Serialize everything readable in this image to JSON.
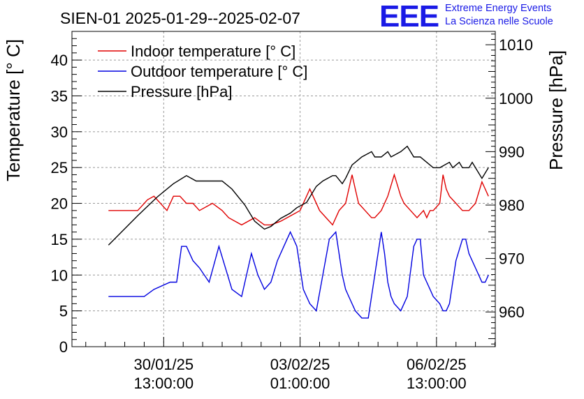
{
  "logo": {
    "mark": "EEE",
    "line1": "Extreme Energy Events",
    "line2": "La Scienza nelle Scuole",
    "color": "#1a1ae6"
  },
  "chart_data": {
    "type": "line",
    "title": "SIEN-01 2025-01-29--2025-02-07",
    "x_label": "",
    "x_ticks": [
      {
        "hours": 24.0,
        "line1": "30/01/25",
        "line2": "13:00:00"
      },
      {
        "hours": 108.0,
        "line1": "03/02/25",
        "line2": "01:00:00"
      },
      {
        "hours": 192.0,
        "line1": "06/02/25",
        "line2": "13:00:00"
      }
    ],
    "x_range_hours": [
      -32.5,
      228.2
    ],
    "x_unit": "hours since 2025-01-29 13:00:00",
    "y_left": {
      "label": "Temperature [° C]",
      "range": [
        0,
        44
      ],
      "ticks": [
        0,
        5,
        10,
        15,
        20,
        25,
        30,
        35,
        40
      ]
    },
    "y_right": {
      "label": "Pressure [hPa]",
      "range": [
        953.5,
        1012.5
      ],
      "ticks": [
        960,
        970,
        980,
        990,
        1000,
        1010
      ]
    },
    "grid": true,
    "legend_position": "top-left",
    "series": [
      {
        "name": "Indoor temperature [° C]",
        "axis": "left",
        "color": "#e00000",
        "x": [
          -10,
          8,
          10,
          14,
          18,
          20,
          26,
          30,
          34,
          38,
          42,
          46,
          54,
          60,
          64,
          72,
          80,
          86,
          90,
          96,
          100,
          104,
          108,
          114,
          120,
          124,
          128,
          132,
          136,
          140,
          142,
          144,
          148,
          152,
          154,
          158,
          162,
          166,
          170,
          172,
          176,
          180,
          184,
          186,
          188,
          190,
          194,
          196,
          198,
          200,
          204,
          208,
          212,
          216,
          220,
          222,
          224
        ],
        "values": [
          19,
          19,
          19.5,
          20.5,
          21,
          20.5,
          19,
          21,
          21,
          20,
          20,
          19,
          20,
          19,
          18,
          17,
          18,
          17,
          17,
          17.5,
          18,
          18.5,
          19,
          22,
          19,
          18,
          17,
          19,
          20,
          24,
          22,
          20,
          19,
          18,
          18,
          19,
          21,
          24,
          21,
          20,
          19,
          18,
          19,
          18,
          19,
          19,
          20,
          24,
          22,
          21,
          20,
          19,
          19,
          20,
          23,
          22,
          21
        ]
      },
      {
        "name": "Outdoor temperature [° C]",
        "axis": "left",
        "color": "#0000e0",
        "x": [
          -10,
          6,
          12,
          18,
          28,
          32,
          35,
          38,
          42,
          46,
          52,
          58,
          66,
          72,
          78,
          82,
          86,
          90,
          94,
          98,
          102,
          106,
          110,
          114,
          118,
          122,
          126,
          130,
          134,
          136,
          138,
          142,
          146,
          150,
          154,
          158,
          160,
          162,
          164,
          166,
          170,
          174,
          178,
          180,
          182,
          184,
          186,
          188,
          190,
          194,
          196,
          198,
          200,
          204,
          208,
          210,
          212,
          216,
          218,
          220,
          222,
          224
        ],
        "values": [
          7,
          7,
          7,
          8,
          9,
          9,
          14,
          14,
          12,
          11,
          9,
          14,
          8,
          7,
          13,
          10,
          8,
          9,
          12,
          14,
          16,
          14,
          8,
          6,
          5,
          10,
          15,
          16,
          10,
          8,
          7,
          5,
          4,
          4,
          10,
          16,
          13,
          9,
          7,
          6,
          5,
          7,
          14,
          15,
          15,
          10,
          9,
          8,
          7,
          6,
          5,
          5,
          6,
          12,
          15,
          15,
          13,
          11,
          10,
          9,
          9,
          10
        ]
      },
      {
        "name": "Pressure [hPa]",
        "axis": "right",
        "color": "#000000",
        "x": [
          -10,
          8,
          20,
          30,
          38,
          44,
          54,
          60,
          66,
          74,
          80,
          86,
          90,
          96,
          102,
          106,
          112,
          118,
          122,
          128,
          130,
          134,
          136,
          140,
          146,
          152,
          154,
          158,
          162,
          164,
          170,
          174,
          176,
          178,
          180,
          182,
          186,
          190,
          194,
          200,
          202,
          206,
          208,
          212,
          214,
          216,
          220,
          224
        ],
        "values": [
          972.5,
          978,
          981.5,
          984,
          985.5,
          984.5,
          984.5,
          984.5,
          983,
          980,
          977,
          975.5,
          976,
          977.5,
          978.5,
          979.5,
          980.5,
          983.5,
          984.5,
          985.5,
          985.5,
          984,
          985,
          987.5,
          989,
          990,
          989,
          989,
          990,
          989,
          990,
          991,
          990,
          989,
          989,
          989,
          988,
          987,
          987,
          988,
          987,
          988,
          987,
          987,
          988,
          987,
          985,
          987
        ]
      }
    ]
  }
}
